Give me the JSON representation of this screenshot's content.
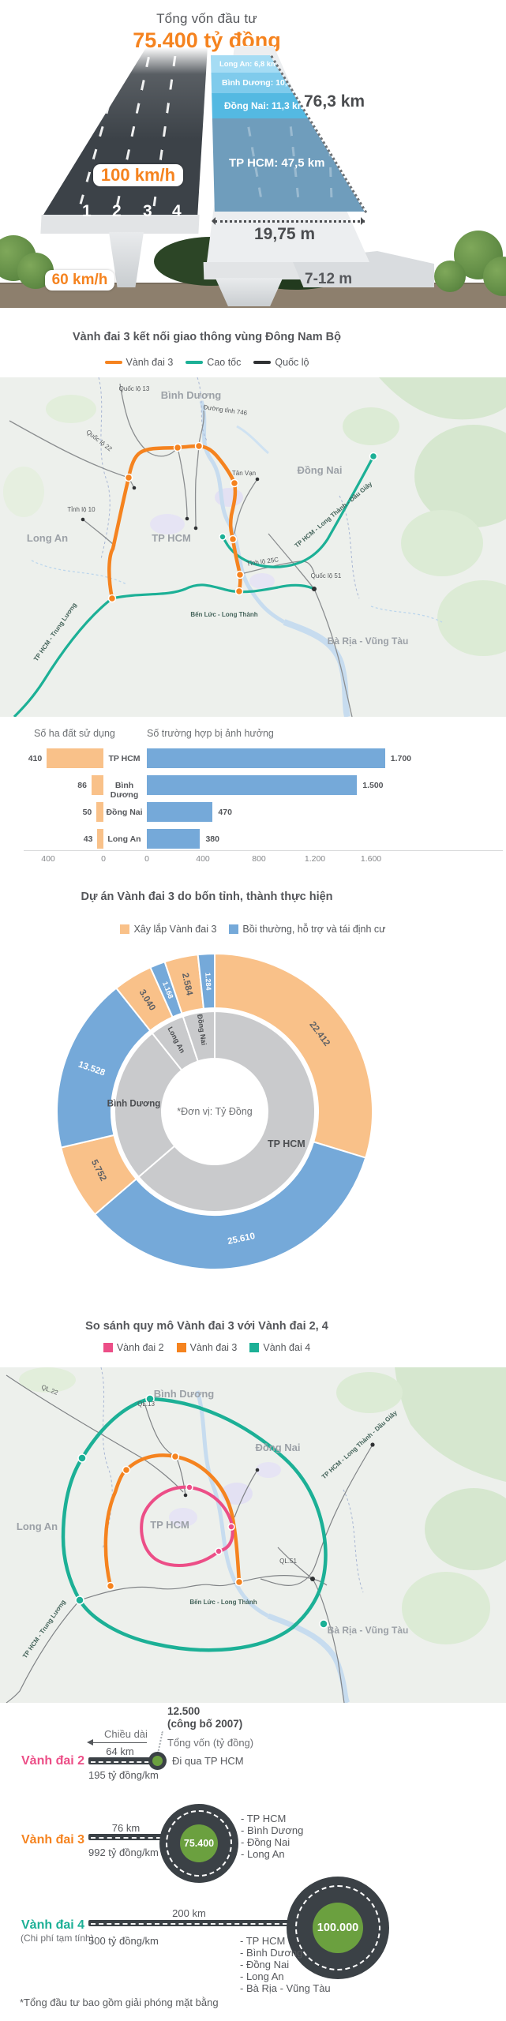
{
  "hero": {
    "title": "Tổng vốn đầu tư",
    "amount": "75.400 tỷ đồng",
    "total_length": "76,3 km",
    "main_width": "19,75 m",
    "frontage_width": "7-12 m",
    "main_speed": "100 km/h",
    "frontage_speed": "60 km/h",
    "lanes": [
      "1",
      "2",
      "3",
      "4"
    ],
    "segments": [
      {
        "name": "Long An",
        "label": "Long An: 6,8 km",
        "color": "#a5dcf4"
      },
      {
        "name": "Bình Dương",
        "label": "Bình Dương: 10,7 km",
        "color": "#7fcbec"
      },
      {
        "name": "Đồng Nai",
        "label": "Đồng Nai: 11,3 km",
        "color": "#54b9e2"
      },
      {
        "name": "TP HCM",
        "label": "TP HCM: 47,5 km",
        "color": "#6f9dbc"
      }
    ]
  },
  "map_section": {
    "title": "Vành đai 3 kết nối giao thông vùng Đông Nam Bộ",
    "legend": [
      {
        "label": "Vành đai 3",
        "color": "#f5831f"
      },
      {
        "label": "Cao tốc",
        "color": "#1cb096"
      },
      {
        "label": "Quốc lộ",
        "color": "#2f3133"
      }
    ],
    "labels": {
      "binh_duong": "Bình Dương",
      "dong_nai": "Đồng Nai",
      "long_an": "Long An",
      "tp_hcm": "TP HCM",
      "ba_ria": "Bà Rịa - Vũng Tàu",
      "ql13": "Quốc lộ 13",
      "dt746": "Đường tỉnh 746",
      "ql22": "Quốc lộ 22",
      "tan_van": "Tân Vạn",
      "tl10": "Tỉnh lộ 10",
      "tl25c": "Tỉnh lộ 25C",
      "ql51": "Quốc lộ 51",
      "ben_luc_long_thanh": "Bến Lức - Long Thành",
      "long_thanh_dau_giay": "TP HCM - Long Thành - Dầu Giây",
      "trung_luong": "TP HCM - Trung Lương"
    }
  },
  "chart_data": [
    {
      "type": "bar",
      "orientation": "horizontal",
      "title": "Số ha đất sử dụng",
      "categories": [
        "TP HCM",
        "Bình Dương",
        "Đồng Nai",
        "Long An"
      ],
      "values": [
        410,
        86,
        50,
        43
      ],
      "value_labels": [
        "410",
        "86",
        "50",
        "43"
      ],
      "axis_ticks": [
        "400",
        "0"
      ],
      "xlim": [
        400,
        0
      ],
      "bar_color": "#f9c189"
    },
    {
      "type": "bar",
      "orientation": "horizontal",
      "title": "Số trường hợp bị ảnh hưởng",
      "categories": [
        "TP HCM",
        "Bình Dương",
        "Đồng Nai",
        "Long An"
      ],
      "values": [
        1700,
        1500,
        470,
        380
      ],
      "value_labels": [
        "1.700",
        "1.500",
        "470",
        "380"
      ],
      "axis_ticks": [
        "0",
        "400",
        "800",
        "1.200",
        "1.600"
      ],
      "xlim": [
        0,
        1600
      ],
      "bar_color": "#75a9d9"
    },
    {
      "type": "donut",
      "title": "Dự án Vành đai 3 do bốn tỉnh, thành thực hiện",
      "unit_note": "*Đơn vị: Tỷ Đồng",
      "legend": [
        {
          "label": "Xây lắp Vành đai 3",
          "color": "#f9c189"
        },
        {
          "label": "Bồi thường, hỗ trợ và tái định cư",
          "color": "#75a9d9"
        }
      ],
      "segments": [
        {
          "province": "TP HCM",
          "category": "Xây lắp Vành đai 3",
          "value": 22412,
          "label": "22.412"
        },
        {
          "province": "TP HCM",
          "category": "Bồi thường, hỗ trợ và tái định cư",
          "value": 25610,
          "label": "25.610"
        },
        {
          "province": "Bình Dương",
          "category": "Xây lắp Vành đai 3",
          "value": 5752,
          "label": "5.752"
        },
        {
          "province": "Bình Dương",
          "category": "Bồi thường, hỗ trợ và tái định cư",
          "value": 13528,
          "label": "13.528"
        },
        {
          "province": "Long An",
          "category": "Xây lắp Vành đai 3",
          "value": 3040,
          "label": "3.040"
        },
        {
          "province": "Long An",
          "category": "Bồi thường, hỗ trợ và tái định cư",
          "value": 1168,
          "label": "1.168"
        },
        {
          "province": "Đồng Nai",
          "category": "Xây lắp Vành đai 3",
          "value": 2584,
          "label": "2.584"
        },
        {
          "province": "Đồng Nai",
          "category": "Bồi thường, hỗ trợ và tái định cư",
          "value": 1284,
          "label": "1.284"
        }
      ],
      "inner_ring": [
        {
          "label": "TP HCM",
          "value": 48022
        },
        {
          "label": "Bình Dương",
          "value": 19280
        },
        {
          "label": "Long An",
          "value": 4208
        },
        {
          "label": "Đồng Nai",
          "value": 3868
        }
      ]
    }
  ],
  "map2_section": {
    "title": "So sánh quy mô Vành đai 3 với Vành đai 2, 4",
    "legend": [
      {
        "label": "Vành đai 2",
        "color": "#ec4e87"
      },
      {
        "label": "Vành đai 3",
        "color": "#f5831f"
      },
      {
        "label": "Vành đai 4",
        "color": "#1cb096"
      }
    ],
    "labels": {
      "binh_duong": "Bình Dương",
      "dong_nai": "Đồng Nai",
      "long_an": "Long An",
      "tp_hcm": "TP HCM",
      "ba_ria": "Bà Rịa - Vũng Tàu",
      "ql22": "QL.22",
      "ql13": "QL.13",
      "ql51": "QL.51",
      "ben_luc_long_thanh": "Bến Lức - Long Thành",
      "long_thanh_dau_giay": "TP HCM - Long Thành - Dầu Giây",
      "trung_luong": "TP HCM - Trung Lương"
    }
  },
  "comparison": {
    "length_label": "Chiều dài",
    "capital_label": "Tổng vốn (tỷ đồng)",
    "rows": [
      {
        "name": "Vành đai 2",
        "color": "#ec4e87",
        "length": "64 km",
        "cost_per_km": "195 tỷ đồng/km",
        "total": "12.500",
        "total_note": "(công bố 2007)",
        "via": "Đi qua TP HCM"
      },
      {
        "name": "Vành đai 3",
        "color": "#f5831f",
        "length": "76 km",
        "cost_per_km": "992 tỷ đồng/km",
        "total": "75.400",
        "provinces": [
          "- TP HCM",
          "- Bình Dương",
          "- Đồng Nai",
          "- Long An"
        ]
      },
      {
        "name": "Vành đai 4",
        "color": "#1cb096",
        "note": "(Chi phí tạm tính)",
        "length": "200 km",
        "cost_per_km": "500 tỷ đồng/km",
        "total": "100.000",
        "provinces": [
          "- TP HCM",
          "- Bình Dương",
          "- Đồng Nai",
          "- Long An",
          "- Bà Rịa - Vũng Tàu"
        ]
      }
    ]
  },
  "footnote": "*Tổng đầu tư bao gồm giải phóng mặt bằng"
}
